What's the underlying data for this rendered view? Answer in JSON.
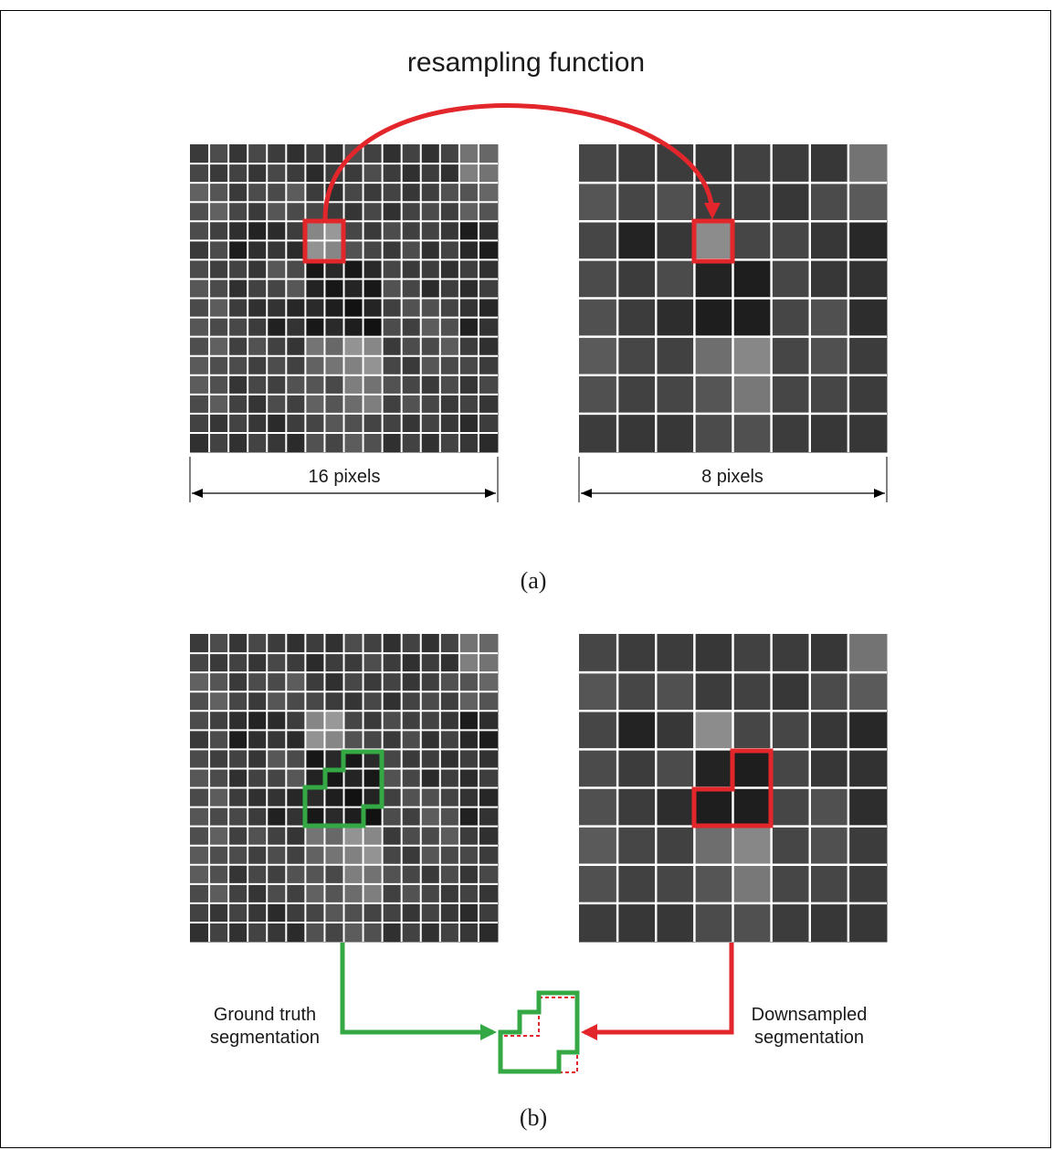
{
  "title": "resampling function",
  "panel_a": {
    "caption": "(a)",
    "left_dimension_label": "16 pixels",
    "right_dimension_label": "8 pixels"
  },
  "panel_b": {
    "caption": "(b)",
    "ground_truth_label_line1": "Ground truth",
    "ground_truth_label_line2": "segmentation",
    "downsampled_label_line1": "Downsampled",
    "downsampled_label_line2": "segmentation"
  },
  "colors": {
    "red": "#e3262b",
    "green": "#33a845",
    "grid_line": "#ffffff",
    "text": "#1a1a1a"
  },
  "image_8x8_gray_levels": [
    [
      70,
      60,
      60,
      55,
      65,
      60,
      55,
      115
    ],
    [
      85,
      70,
      80,
      60,
      65,
      55,
      75,
      90
    ],
    [
      70,
      35,
      55,
      140,
      70,
      70,
      55,
      40
    ],
    [
      75,
      60,
      75,
      35,
      30,
      70,
      55,
      50
    ],
    [
      80,
      60,
      45,
      30,
      30,
      70,
      80,
      45
    ],
    [
      90,
      70,
      65,
      110,
      135,
      70,
      80,
      60
    ],
    [
      80,
      65,
      70,
      85,
      120,
      70,
      70,
      60
    ],
    [
      60,
      55,
      55,
      75,
      80,
      60,
      55,
      55
    ]
  ]
}
